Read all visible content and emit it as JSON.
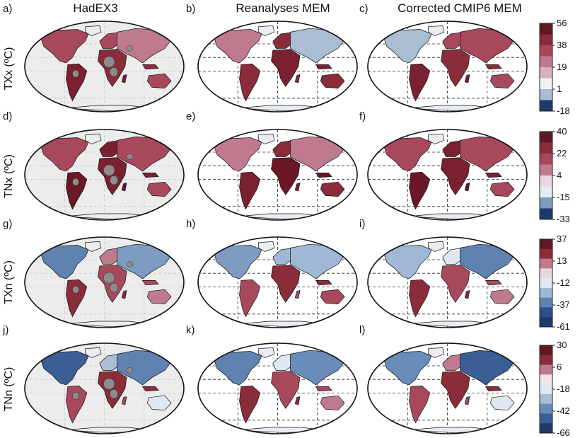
{
  "columns": [
    {
      "label": "HadEX3",
      "style": "plain"
    },
    {
      "label": "Reanalyses MEM",
      "style": "gridded"
    },
    {
      "label": "Corrected CMIP6 MEM",
      "style": "gridded"
    }
  ],
  "rows": [
    {
      "variable": "TXx (ºC)",
      "panels": [
        "a)",
        "b)",
        "c)"
      ],
      "colorbar": {
        "ticks": [
          "56",
          "38",
          "19",
          "1",
          "-18"
        ],
        "colors": [
          "#5e1a24",
          "#8b2c3a",
          "#a8485c",
          "#c07a8e",
          "#d8b2c0",
          "#f1f4f7",
          "#a9bdd4",
          "#1c3a6a"
        ]
      },
      "map_colors": {
        "north": [
          "#a8485c",
          "#c07a8e",
          "#a9bdd4"
        ],
        "mid": [
          "#8b2c3a",
          "#a8485c"
        ],
        "tropics": [
          "#7a2030",
          "#8b2c3a"
        ],
        "south": [
          "#a8485c",
          "#8b2c3a"
        ],
        "ice": "#e9ecf2"
      }
    },
    {
      "variable": "TNx (ºC)",
      "panels": [
        "d)",
        "e)",
        "f)"
      ],
      "colorbar": {
        "ticks": [
          "40",
          "22",
          "4",
          "-15",
          "-33"
        ],
        "colors": [
          "#5e1a24",
          "#8b2c3a",
          "#a8485c",
          "#c07a8e",
          "#ebd6de",
          "#e4ecf3",
          "#7e9cc1",
          "#1c3a6a"
        ]
      },
      "map_colors": {
        "north": [
          "#a8485c",
          "#c07a8e"
        ],
        "mid": [
          "#8b2c3a",
          "#7a2030"
        ],
        "tropics": [
          "#6a1826",
          "#7a2030"
        ],
        "south": [
          "#a8485c",
          "#8b2c3a"
        ],
        "ice": "#e9ecf2"
      }
    },
    {
      "variable": "TXn (ºC)",
      "panels": [
        "g)",
        "h)",
        "i)"
      ],
      "colorbar": {
        "ticks": [
          "37",
          "13",
          "-12",
          "-37",
          "-61"
        ],
        "colors": [
          "#5e1a24",
          "#8b2c3a",
          "#c07a8e",
          "#ebd6de",
          "#dfe8f2",
          "#9fb8d6",
          "#5f82b0",
          "#2b4f86",
          "#1c3a6a"
        ]
      },
      "map_colors": {
        "north": [
          "#5f82b0",
          "#7e9cc1",
          "#9fb8d6"
        ],
        "mid": [
          "#c07a8e",
          "#9fb8d6",
          "#dfe8f2"
        ],
        "tropics": [
          "#8b2c3a",
          "#a8485c"
        ],
        "south": [
          "#c07a8e",
          "#a8485c"
        ],
        "ice": "#e9ecf2"
      }
    },
    {
      "variable": "TNn (ºC)",
      "panels": [
        "j)",
        "k)",
        "l)"
      ],
      "colorbar": {
        "ticks": [
          "30",
          "6",
          "-18",
          "-42",
          "-66"
        ],
        "colors": [
          "#5e1a24",
          "#8b2c3a",
          "#c07a8e",
          "#f0e6ea",
          "#dfe8f2",
          "#a9bdd4",
          "#6a8cbb",
          "#3b5f95",
          "#1c3a6a"
        ]
      },
      "map_colors": {
        "north": [
          "#3b5f95",
          "#5f82b0",
          "#6a8cbb"
        ],
        "mid": [
          "#a9bdd4",
          "#dfe8f2",
          "#c07a8e"
        ],
        "tropics": [
          "#a8485c",
          "#8b2c3a"
        ],
        "south": [
          "#dfe8f2",
          "#c07a8e"
        ],
        "ice": "#e9ecf2"
      }
    }
  ],
  "colors": {
    "ocean_plain": "#ececec",
    "ocean_gridded": "#ffffff",
    "missing_land": "#8c8c8c",
    "outline": "#111111"
  }
}
